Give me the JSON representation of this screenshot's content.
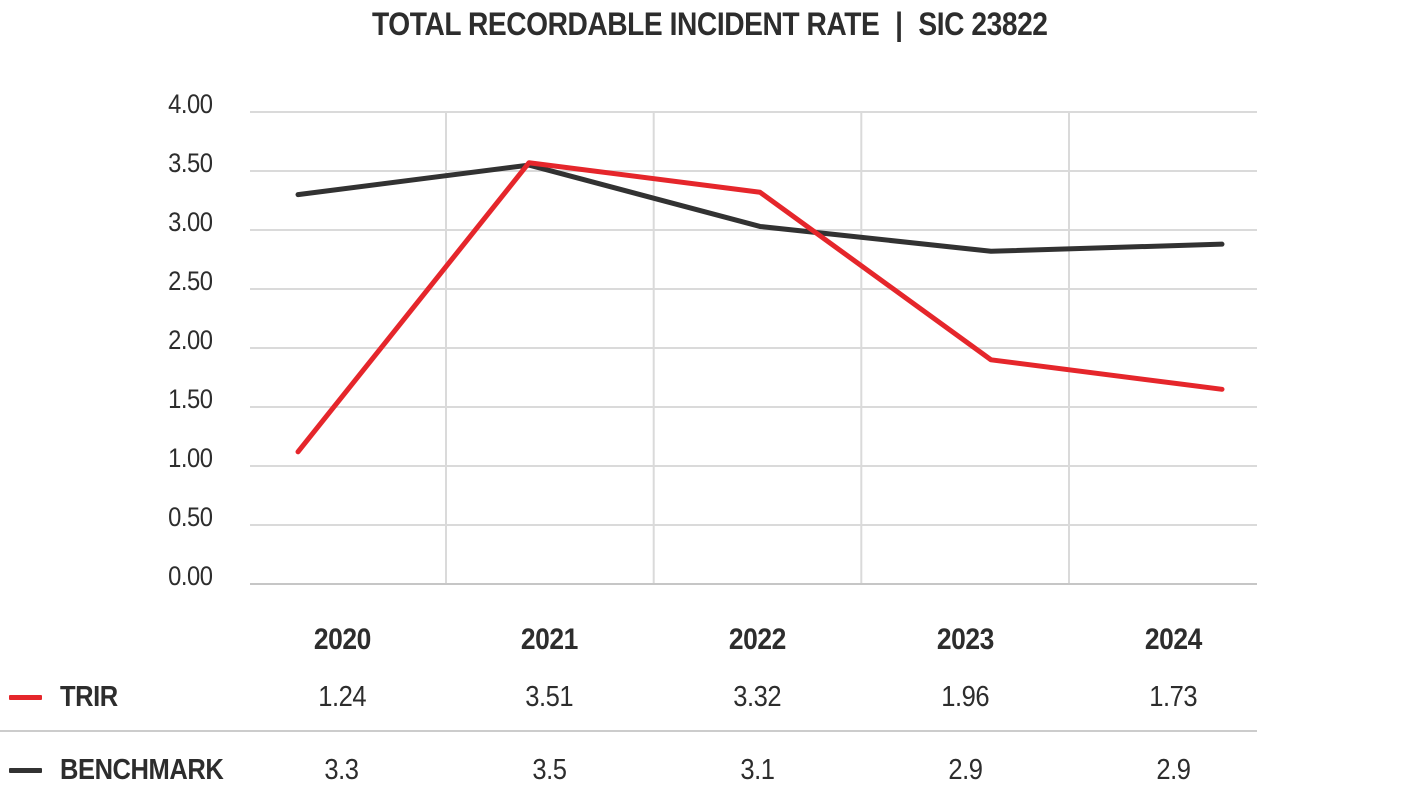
{
  "header": {
    "title_main": "TOTAL RECORDABLE INCIDENT RATE",
    "separator": "|",
    "title_code": "SIC 23822"
  },
  "colors": {
    "trir_red": "#e5262b",
    "benchmark_dark": "#323232",
    "gridline": "#dadada",
    "x_axis_line": "#c6c6c6",
    "table_divider": "#cccccc",
    "text": "#2d2d2d"
  },
  "chart_data": {
    "type": "line",
    "title": "TOTAL RECORDABLE INCIDENT RATE | SIC 23822",
    "categories": [
      "2020",
      "2021",
      "2022",
      "2023",
      "2024"
    ],
    "series": [
      {
        "name": "TRIR",
        "color": "#e5262b",
        "values": [
          1.24,
          3.51,
          3.32,
          1.96,
          1.73
        ],
        "plot_values": [
          1.12,
          3.57,
          3.32,
          1.9,
          1.65
        ]
      },
      {
        "name": "BENCHMARK",
        "color": "#323232",
        "values": [
          3.3,
          3.5,
          3.1,
          2.9,
          2.9
        ],
        "plot_values": [
          3.3,
          3.55,
          3.03,
          2.82,
          2.88
        ]
      }
    ],
    "xlabel": "",
    "ylabel": "",
    "ylim": [
      0,
      4
    ],
    "ytick_step": 0.5,
    "ytick_labels": [
      "4.00",
      "3.50",
      "3.00",
      "2.50",
      "2.00",
      "1.50",
      "1.00",
      "0.50",
      "0.00"
    ],
    "grid": "horizontal and vertical light gray gridlines",
    "legend_position": "left of data table rows below chart"
  }
}
